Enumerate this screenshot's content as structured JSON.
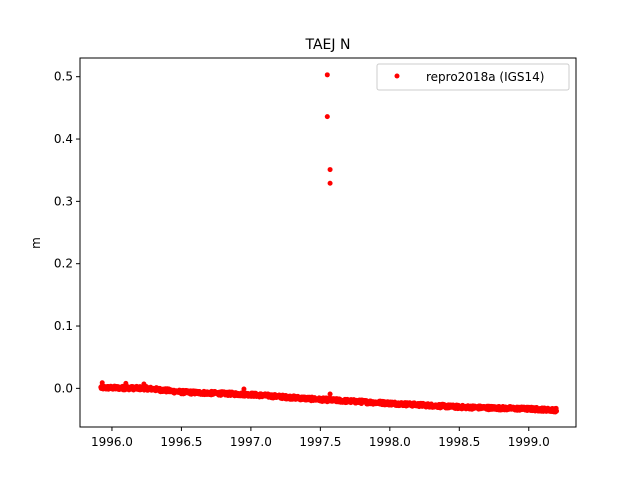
{
  "chart_data": {
    "type": "scatter",
    "title": "TAEJ N",
    "xlabel": "",
    "ylabel": "m",
    "xlim": [
      1995.77,
      1999.34
    ],
    "ylim": [
      -0.062,
      0.53
    ],
    "xticks": [
      1996.0,
      1996.5,
      1997.0,
      1997.5,
      1998.0,
      1998.5,
      1999.0
    ],
    "xtick_labels": [
      "1996.0",
      "1996.5",
      "1997.0",
      "1997.5",
      "1998.0",
      "1998.5",
      "1999.0"
    ],
    "yticks": [
      0.0,
      0.1,
      0.2,
      0.3,
      0.4,
      0.5
    ],
    "ytick_labels": [
      "0.0",
      "0.1",
      "0.2",
      "0.3",
      "0.4",
      "0.5"
    ],
    "grid": false,
    "legend_position": "top-right",
    "series": [
      {
        "name": "repro2018a (IGS14)",
        "color": "#ff0000",
        "marker": "circle",
        "trend": {
          "x": [
            1995.92,
            1996.25,
            1996.5,
            1997.0,
            1997.5,
            1998.0,
            1998.5,
            1999.0,
            1999.2
          ],
          "y": [
            0.001,
            0.0,
            -0.006,
            -0.01,
            -0.018,
            -0.024,
            -0.03,
            -0.033,
            -0.035
          ]
        },
        "x_range": [
          1995.92,
          1999.2
        ],
        "scatter_amplitude": 0.003,
        "points": [
          {
            "x": 1997.55,
            "y": 0.503
          },
          {
            "x": 1997.55,
            "y": 0.436
          },
          {
            "x": 1997.57,
            "y": 0.351
          },
          {
            "x": 1997.57,
            "y": 0.329
          },
          {
            "x": 1997.57,
            "y": -0.009
          },
          {
            "x": 1995.93,
            "y": 0.009
          },
          {
            "x": 1996.1,
            "y": 0.008
          },
          {
            "x": 1996.23,
            "y": 0.007
          },
          {
            "x": 1996.95,
            "y": -0.001
          }
        ]
      }
    ]
  }
}
